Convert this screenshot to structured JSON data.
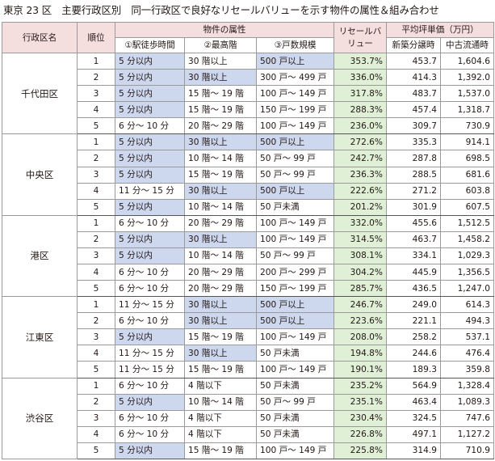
{
  "title": "東京 23 区　主要行政区別　同一行政区で良好なリセールバリューを示す物件の属性＆組み合わせ",
  "header": {
    "ward": "行政区名",
    "rank": "順位",
    "attributes": "物件の属性",
    "attr1": "①駅徒歩時間",
    "attr2": "②最高階",
    "attr3": "③戸数規模",
    "resale": "リセールバリュー",
    "price": "平均坪単価（万円）",
    "new_price": "新築分譲時",
    "used_price": "中古流通時"
  },
  "colors": {
    "header_bg": "#f5dede",
    "highlight": "#cdd7ee",
    "resale_bg": "#dff0d7"
  },
  "groups": [
    {
      "ward": "千代田区",
      "rows": [
        {
          "rank": "1",
          "walk": "5 分以内",
          "floor": "30 階以上",
          "units": "500 戸以上",
          "resale": "353.7%",
          "new": "453.7",
          "used": "1,604.6",
          "hl": [
            true,
            false,
            true
          ]
        },
        {
          "rank": "2",
          "walk": "5 分以内",
          "floor": "30 階以上",
          "units": "300 戸～ 499 戸",
          "resale": "336.0%",
          "new": "414.3",
          "used": "1,392.0",
          "hl": [
            true,
            true,
            false
          ]
        },
        {
          "rank": "3",
          "walk": "5 分以内",
          "floor": "15 階～ 19 階",
          "units": "100 戸～ 149 戸",
          "resale": "317.8%",
          "new": "483.7",
          "used": "1,537.0",
          "hl": [
            true,
            false,
            false
          ]
        },
        {
          "rank": "4",
          "walk": "5 分以内",
          "floor": "15 階～ 19 階",
          "units": "150 戸～ 199 戸",
          "resale": "288.3%",
          "new": "457.4",
          "used": "1,318.7",
          "hl": [
            true,
            false,
            false
          ]
        },
        {
          "rank": "5",
          "walk": "6 分～ 10 分",
          "floor": "20 階～ 29 階",
          "units": "100 戸～ 149 戸",
          "resale": "236.0%",
          "new": "309.7",
          "used": "730.9",
          "hl": [
            false,
            false,
            false
          ]
        }
      ]
    },
    {
      "ward": "中央区",
      "rows": [
        {
          "rank": "1",
          "walk": "5 分以内",
          "floor": "30 階以上",
          "units": "500 戸以上",
          "resale": "272.6%",
          "new": "335.3",
          "used": "914.1",
          "hl": [
            true,
            true,
            true
          ]
        },
        {
          "rank": "2",
          "walk": "5 分以内",
          "floor": "10 階～ 14 階",
          "units": "50 戸～ 99 戸",
          "resale": "242.7%",
          "new": "287.8",
          "used": "698.5",
          "hl": [
            true,
            false,
            false
          ]
        },
        {
          "rank": "3",
          "walk": "5 分以内",
          "floor": "15 階～ 19 階",
          "units": "50 戸～ 99 戸",
          "resale": "236.3%",
          "new": "288.5",
          "used": "681.6",
          "hl": [
            true,
            false,
            false
          ]
        },
        {
          "rank": "4",
          "walk": "11 分～ 15 分",
          "floor": "30 階以上",
          "units": "500 戸以上",
          "resale": "222.6%",
          "new": "271.2",
          "used": "603.8",
          "hl": [
            false,
            true,
            true
          ]
        },
        {
          "rank": "5",
          "walk": "5 分以内",
          "floor": "10 階～ 14 階",
          "units": "50 戸未満",
          "resale": "201.2%",
          "new": "301.9",
          "used": "607.5",
          "hl": [
            true,
            false,
            false
          ]
        }
      ]
    },
    {
      "ward": "港区",
      "rows": [
        {
          "rank": "1",
          "walk": "6 分～ 10 分",
          "floor": "20 階～ 29 階",
          "units": "100 戸～ 149 戸",
          "resale": "332.0%",
          "new": "455.6",
          "used": "1,512.5",
          "hl": [
            false,
            false,
            false
          ]
        },
        {
          "rank": "2",
          "walk": "5 分以内",
          "floor": "30 階以上",
          "units": "100 戸～ 149 戸",
          "resale": "314.5%",
          "new": "463.7",
          "used": "1,458.2",
          "hl": [
            true,
            true,
            false
          ]
        },
        {
          "rank": "3",
          "walk": "5 分以内",
          "floor": "10 階～ 14 階",
          "units": "50 戸～ 99 戸",
          "resale": "308.1%",
          "new": "334.1",
          "used": "1,029.3",
          "hl": [
            true,
            false,
            false
          ]
        },
        {
          "rank": "4",
          "walk": "6 分～ 10 分",
          "floor": "20 階～ 29 階",
          "units": "200 戸～ 299 戸",
          "resale": "304.2%",
          "new": "445.9",
          "used": "1,356.5",
          "hl": [
            false,
            false,
            false
          ]
        },
        {
          "rank": "5",
          "walk": "6 分～ 10 分",
          "floor": "20 階～ 29 階",
          "units": "150 戸～ 199 戸",
          "resale": "285.7%",
          "new": "436.5",
          "used": "1,247.0",
          "hl": [
            false,
            false,
            false
          ]
        }
      ]
    },
    {
      "ward": "江東区",
      "rows": [
        {
          "rank": "1",
          "walk": "11 分～ 15 分",
          "floor": "30 階以上",
          "units": "500 戸以上",
          "resale": "246.7%",
          "new": "249.0",
          "used": "614.3",
          "hl": [
            false,
            true,
            true
          ]
        },
        {
          "rank": "2",
          "walk": "6 分～ 10 分",
          "floor": "30 階以上",
          "units": "500 戸以上",
          "resale": "223.6%",
          "new": "221.1",
          "used": "494.3",
          "hl": [
            false,
            true,
            true
          ]
        },
        {
          "rank": "3",
          "walk": "5 分以内",
          "floor": "15 階～ 19 階",
          "units": "100 戸～ 149 戸",
          "resale": "208.0%",
          "new": "258.2",
          "used": "537.1",
          "hl": [
            true,
            false,
            false
          ]
        },
        {
          "rank": "4",
          "walk": "11 分～ 15 分",
          "floor": "30 階以上",
          "units": "50 戸未満",
          "resale": "194.8%",
          "new": "244.6",
          "used": "476.4",
          "hl": [
            false,
            true,
            false
          ]
        },
        {
          "rank": "5",
          "walk": "11 分～ 15 分",
          "floor": "15 階～ 19 階",
          "units": "100 戸～ 149 戸",
          "resale": "190.1%",
          "new": "189.3",
          "used": "359.8",
          "hl": [
            false,
            false,
            false
          ]
        }
      ]
    },
    {
      "ward": "渋谷区",
      "rows": [
        {
          "rank": "1",
          "walk": "6 分～ 10 分",
          "floor": "4 階以下",
          "units": "50 戸未満",
          "resale": "235.2%",
          "new": "564.9",
          "used": "1,328.4",
          "hl": [
            false,
            false,
            false
          ]
        },
        {
          "rank": "2",
          "walk": "5 分以内",
          "floor": "10 階～ 14 階",
          "units": "50 戸～ 99 戸",
          "resale": "235.1%",
          "new": "463.4",
          "used": "1,089.3",
          "hl": [
            true,
            false,
            false
          ]
        },
        {
          "rank": "3",
          "walk": "6 分～ 10 分",
          "floor": "4 階以下",
          "units": "50 戸未満",
          "resale": "230.4%",
          "new": "324.5",
          "used": "747.6",
          "hl": [
            false,
            false,
            false
          ]
        },
        {
          "rank": "4",
          "walk": "6 分～ 10 分",
          "floor": "4 階以下",
          "units": "50 戸未満",
          "resale": "226.8%",
          "new": "497.1",
          "used": "1,127.2",
          "hl": [
            false,
            false,
            false
          ]
        },
        {
          "rank": "5",
          "walk": "5 分以内",
          "floor": "15 階～ 19 階",
          "units": "100 戸～ 149 戸",
          "resale": "225.8%",
          "new": "314.9",
          "used": "710.9",
          "hl": [
            true,
            false,
            false
          ]
        }
      ]
    }
  ]
}
